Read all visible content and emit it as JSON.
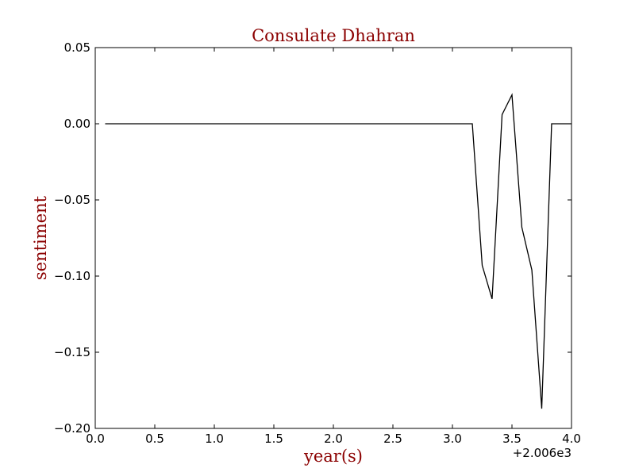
{
  "colors": {
    "label": "#8b0000",
    "line": "#000000",
    "axes": "#000000",
    "background": "#ffffff"
  },
  "chart_data": {
    "type": "line",
    "title": "Consulate Dhahran",
    "xlabel": "year(s)",
    "ylabel": "sentiment",
    "x_offset_label": "+2.006e3",
    "xlim": [
      0.0,
      4.0
    ],
    "ylim": [
      -0.2,
      0.05
    ],
    "x_ticks": [
      0.0,
      0.5,
      1.0,
      1.5,
      2.0,
      2.5,
      3.0,
      3.5,
      4.0
    ],
    "x_tick_labels": [
      "0.0",
      "0.5",
      "1.0",
      "1.5",
      "2.0",
      "2.5",
      "3.0",
      "3.5",
      "4.0"
    ],
    "y_ticks": [
      0.05,
      0.0,
      -0.05,
      -0.1,
      -0.15,
      -0.2
    ],
    "y_tick_labels": [
      "0.05",
      "0.00",
      "−0.05",
      "−0.10",
      "−0.15",
      "−0.20"
    ],
    "grid": false,
    "legend": "none",
    "series": [
      {
        "x": [
          0.083,
          0.167,
          0.25,
          0.333,
          0.417,
          0.5,
          0.583,
          0.667,
          0.75,
          0.833,
          0.917,
          1.0,
          1.083,
          1.167,
          1.25,
          1.333,
          1.417,
          1.5,
          1.583,
          1.667,
          1.75,
          1.833,
          1.917,
          2.0,
          2.083,
          2.167,
          2.25,
          2.333,
          2.417,
          2.5,
          2.583,
          2.667,
          2.75,
          2.833,
          2.917,
          3.0,
          3.083,
          3.167,
          3.25,
          3.333,
          3.417,
          3.5,
          3.583,
          3.667,
          3.75,
          3.833,
          3.917,
          4.0
        ],
        "y": [
          0,
          0,
          0,
          0,
          0,
          0,
          0,
          0,
          0,
          0,
          0,
          0,
          0,
          0,
          0,
          0,
          0,
          0,
          0,
          0,
          0,
          0,
          0,
          0,
          0,
          0,
          0,
          0,
          0,
          0,
          0,
          0,
          0,
          0,
          0,
          0,
          0,
          0,
          -0.093,
          -0.115,
          0.006,
          0.019,
          -0.068,
          -0.096,
          -0.187,
          0,
          0,
          0
        ]
      }
    ]
  }
}
